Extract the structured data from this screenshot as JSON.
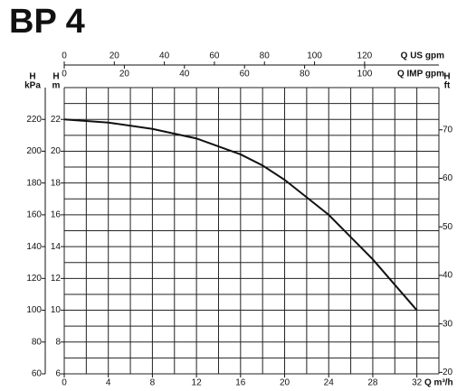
{
  "chart_data": {
    "type": "line",
    "title": "BP 4",
    "x_label": "Q m³/h",
    "x": [
      0,
      4,
      8,
      12,
      16,
      18,
      20,
      24,
      28,
      32
    ],
    "xlim": [
      0,
      34
    ],
    "xticks": [
      0,
      4,
      8,
      12,
      16,
      20,
      24,
      28,
      32
    ],
    "xgrid": [
      0,
      2,
      4,
      6,
      8,
      10,
      12,
      14,
      16,
      18,
      20,
      22,
      24,
      26,
      28,
      30,
      32,
      34
    ],
    "y_label": [
      "H",
      "m"
    ],
    "ylim": [
      6,
      24
    ],
    "yticks": [
      6,
      8,
      10,
      12,
      14,
      16,
      18,
      20,
      22
    ],
    "ygrid": [
      6,
      7,
      8,
      9,
      10,
      11,
      12,
      13,
      14,
      15,
      16,
      17,
      18,
      19,
      20,
      21,
      22,
      23,
      24
    ],
    "series": [
      {
        "color": "#111111",
        "values": [
          22,
          21.8,
          21.4,
          20.8,
          19.8,
          19.1,
          18.2,
          16.0,
          13.2,
          10
        ]
      }
    ],
    "kpa_axis": {
      "label": [
        "H",
        "kPa"
      ],
      "lim": [
        60,
        240
      ],
      "ticks": [
        60,
        80,
        100,
        120,
        140,
        160,
        180,
        200,
        220
      ]
    },
    "ft_axis": {
      "label": [
        "H",
        "ft"
      ],
      "lim": [
        19.7,
        78.7
      ],
      "ticks": [
        20,
        30,
        40,
        50,
        60,
        70
      ]
    },
    "us_gpm_axis": {
      "label": "Q US gpm",
      "lim": [
        0,
        149.7
      ],
      "ticks": [
        0,
        20,
        40,
        60,
        80,
        100,
        120
      ]
    },
    "imp_gpm_axis": {
      "label": "Q IMP gpm",
      "lim": [
        0,
        124.7
      ],
      "ticks": [
        0,
        20,
        40,
        60,
        80,
        100
      ]
    }
  }
}
